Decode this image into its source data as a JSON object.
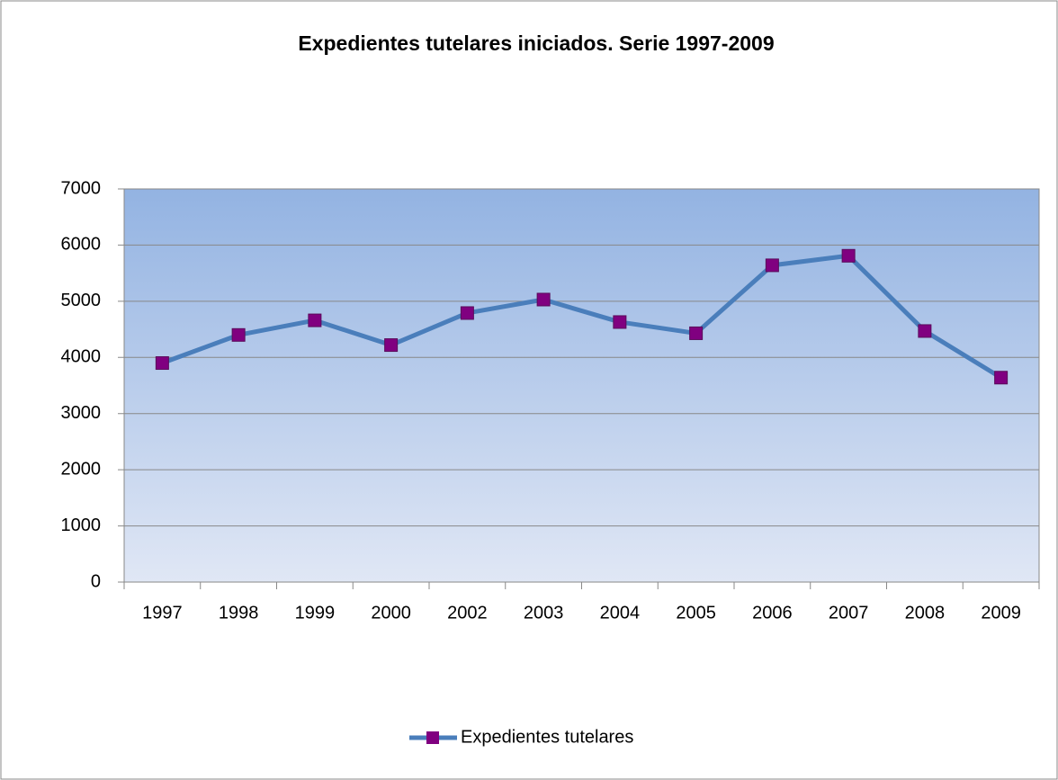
{
  "chart_data": {
    "type": "line",
    "title": "Expedientes tutelares iniciados. Serie 1997-2009",
    "categories": [
      "1997",
      "1998",
      "1999",
      "2000",
      "2002",
      "2003",
      "2004",
      "2005",
      "2006",
      "2007",
      "2008",
      "2009"
    ],
    "series": [
      {
        "name": "Expedientes tutelares",
        "color": "#4a7ebb",
        "marker_color": "#800080",
        "values": [
          3900,
          4400,
          4660,
          4220,
          4790,
          5030,
          4630,
          4430,
          5640,
          5810,
          4470,
          3640
        ]
      }
    ],
    "ylim": [
      0,
      7000
    ],
    "yticks": [
      0,
      1000,
      2000,
      3000,
      4000,
      5000,
      6000,
      7000
    ],
    "grid": true,
    "legend": "bottom"
  }
}
